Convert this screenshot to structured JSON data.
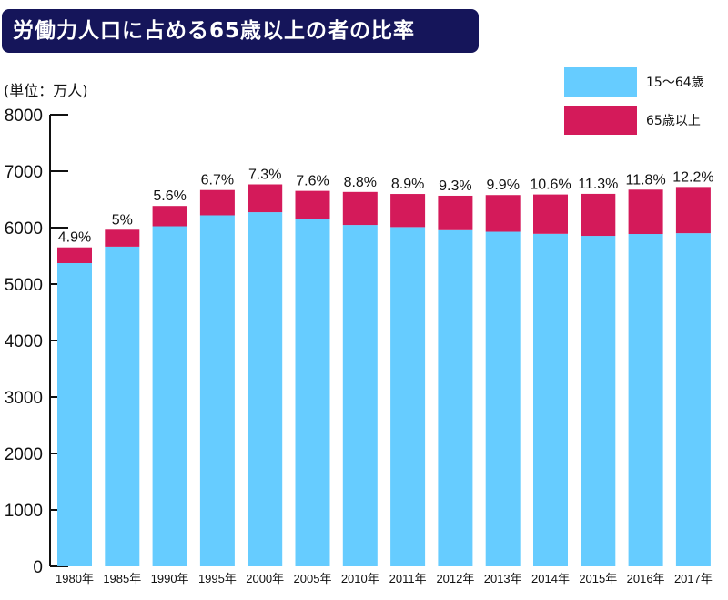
{
  "chart_data": {
    "type": "bar",
    "stacked": true,
    "title": "労働力人口に占める65歳以上の者の比率",
    "ylabel": "(単位：万人)",
    "ylim": [
      0,
      8000
    ],
    "yticks": [
      0,
      1000,
      2000,
      3000,
      4000,
      5000,
      6000,
      7000,
      8000
    ],
    "categories": [
      "1980年",
      "1985年",
      "1990年",
      "1995年",
      "2000年",
      "2005年",
      "2010年",
      "2011年",
      "2012年",
      "2013年",
      "2014年",
      "2015年",
      "2016年",
      "2017年"
    ],
    "series": [
      {
        "name": "15〜64歳",
        "color": "#66ccff",
        "values": [
          5371,
          5663,
          6024,
          6218,
          6273,
          6147,
          6047,
          6010,
          5955,
          5927,
          5890,
          5854,
          5887,
          5901
        ]
      },
      {
        "name": "65歳以上",
        "color": "#d41a5a",
        "values": [
          279,
          300,
          360,
          448,
          493,
          504,
          585,
          586,
          610,
          650,
          697,
          744,
          786,
          819
        ]
      }
    ],
    "data_labels": [
      "4.9%",
      "5%",
      "5.6%",
      "6.7%",
      "7.3%",
      "7.6%",
      "8.8%",
      "8.9%",
      "9.3%",
      "9.9%",
      "10.6%",
      "11.3%",
      "11.8%",
      "12.2%"
    ],
    "legend": "top-right",
    "grid": false
  }
}
